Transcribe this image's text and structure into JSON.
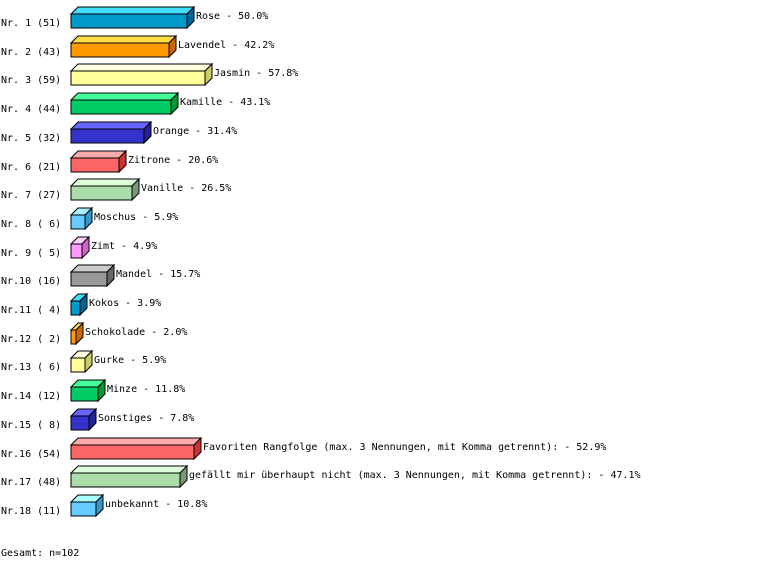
{
  "chart_data": {
    "type": "bar",
    "orientation": "horizontal",
    "style": "3d",
    "unit": "%",
    "row_labels": [
      "Nr. 1 (51)",
      "Nr. 2 (43)",
      "Nr. 3 (59)",
      "Nr. 4 (44)",
      "Nr. 5 (32)",
      "Nr. 6 (21)",
      "Nr. 7 (27)",
      "Nr. 8 ( 6)",
      "Nr. 9 ( 5)",
      "Nr.10 (16)",
      "Nr.11 ( 4)",
      "Nr.12 ( 2)",
      "Nr.13 ( 6)",
      "Nr.14 (12)",
      "Nr.15 ( 8)",
      "Nr.16 (54)",
      "Nr.17 (48)",
      "Nr.18 (11)"
    ],
    "categories": [
      "Rose",
      "Lavendel",
      "Jasmin",
      "Kamille",
      "Orange",
      "Zitrone",
      "Vanille",
      "Moschus",
      "Zimt",
      "Mandel",
      "Kokos",
      "Schokolade",
      "Gurke",
      "Minze",
      "Sonstiges",
      "Favoriten Rangfolge (max. 3 Nennungen, mit Komma getrennt):",
      "gefällt mir überhaupt nicht (max. 3 Nennungen, mit Komma getrennt):",
      "unbekannt"
    ],
    "counts": [
      51,
      43,
      59,
      44,
      32,
      21,
      27,
      6,
      5,
      16,
      4,
      2,
      6,
      12,
      8,
      54,
      48,
      11
    ],
    "values": [
      50.0,
      42.2,
      57.8,
      43.1,
      31.4,
      20.6,
      26.5,
      5.9,
      4.9,
      15.7,
      3.9,
      2.0,
      5.9,
      11.8,
      7.8,
      52.9,
      47.1,
      10.8
    ],
    "value_labels": [
      "50.0%",
      "42.2%",
      "57.8%",
      "43.1%",
      "31.4%",
      "20.6%",
      "26.5%",
      "5.9%",
      "4.9%",
      "15.7%",
      "3.9%",
      "2.0%",
      "5.9%",
      "11.8%",
      "7.8%",
      "52.9%",
      "47.1%",
      "10.8%"
    ],
    "colors": [
      "#0099cc",
      "#ff9900",
      "#ffff99",
      "#00cc66",
      "#3333cc",
      "#ff6666",
      "#aaddaa",
      "#66ccff",
      "#ff99ff",
      "#999999",
      "#0099cc",
      "#ff9900",
      "#ffff99",
      "#00cc66",
      "#3333cc",
      "#ff6666",
      "#aaddaa",
      "#66ccff"
    ],
    "top_colors": [
      "#44ddff",
      "#ffdd44",
      "#ffffdd",
      "#44ff99",
      "#6666ff",
      "#ffaaaa",
      "#ddffdd",
      "#aaeeff",
      "#ffccff",
      "#cccccc",
      "#44ddff",
      "#ffdd44",
      "#ffffdd",
      "#44ff99",
      "#6666ff",
      "#ffaaaa",
      "#ddffdd",
      "#aaffff"
    ],
    "side_colors": [
      "#006699",
      "#cc6600",
      "#cccc66",
      "#009933",
      "#222299",
      "#cc3333",
      "#779977",
      "#3399cc",
      "#cc66cc",
      "#666666",
      "#006699",
      "#cc6600",
      "#cccc66",
      "#009933",
      "#222299",
      "#cc3333",
      "#779977",
      "#3399cc"
    ],
    "xlim": [
      0,
      100
    ],
    "grid": false,
    "legend": "none"
  },
  "footer": {
    "total": "Gesamt: n=102"
  }
}
